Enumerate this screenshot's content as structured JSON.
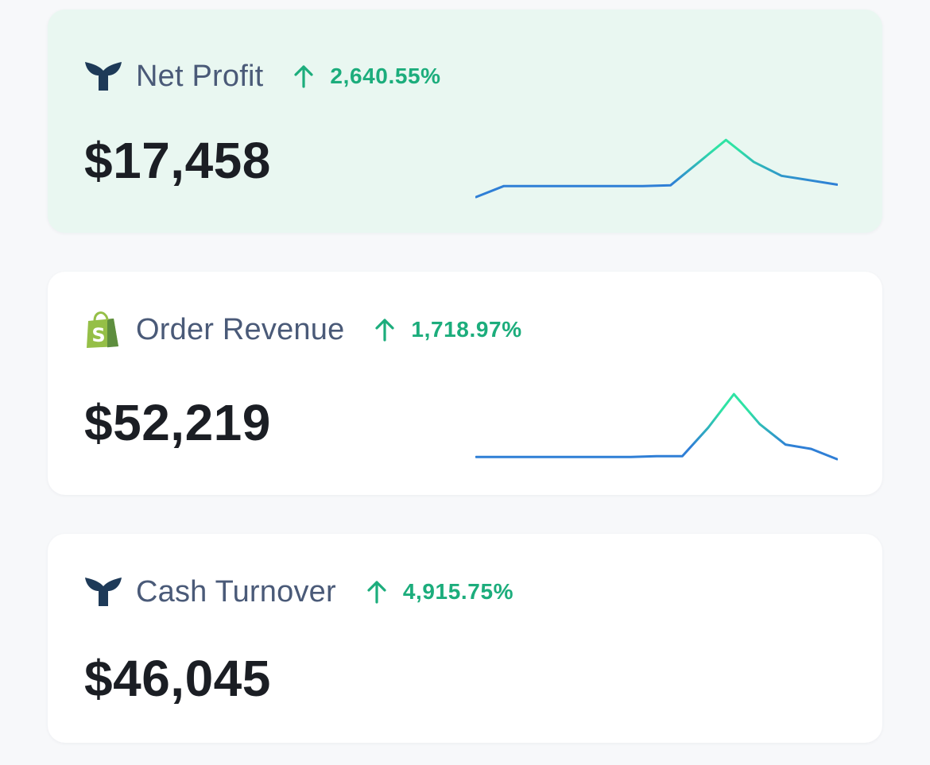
{
  "colors": {
    "page_background": "#f7f8fa",
    "card_background": "#ffffff",
    "highlight_background": "#e9f7f1",
    "label": "#4a5a78",
    "value": "#1b1e24",
    "positive": "#1cad7c",
    "sparkline_start": "#2f7fd6",
    "sparkline_peak": "#2fe3a4"
  },
  "cards": [
    {
      "label": "Net Profit",
      "icon": "whale-tail-icon",
      "change_direction": "up",
      "change": "2,640.55%",
      "value": "$17,458",
      "highlighted": true,
      "sparkline": [
        0,
        15,
        15,
        15,
        15,
        15,
        15,
        16,
        47,
        78,
        48,
        29,
        23,
        17
      ]
    },
    {
      "label": "Order Revenue",
      "icon": "shopify-bag-icon",
      "change_direction": "up",
      "change": "1,718.97%",
      "value": "$52,219",
      "highlighted": false,
      "sparkline": [
        3,
        3,
        3,
        3,
        3,
        3,
        3,
        4,
        4,
        43,
        89,
        48,
        20,
        14,
        0
      ]
    },
    {
      "label": "Cash Turnover",
      "icon": "whale-tail-icon",
      "change_direction": "up",
      "change": "4,915.75%",
      "value": "$46,045",
      "highlighted": false
    }
  ]
}
